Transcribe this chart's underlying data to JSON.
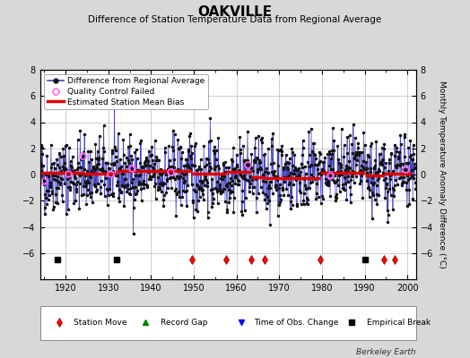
{
  "title": "OAKVILLE",
  "subtitle": "Difference of Station Temperature Data from Regional Average",
  "ylabel": "Monthly Temperature Anomaly Difference (°C)",
  "xlim": [
    1914,
    2002
  ],
  "ylim": [
    -8,
    8
  ],
  "yticks": [
    -6,
    -4,
    -2,
    0,
    2,
    4,
    6,
    8
  ],
  "xticks": [
    1920,
    1930,
    1940,
    1950,
    1960,
    1970,
    1980,
    1990,
    2000
  ],
  "background_color": "#d8d8d8",
  "plot_bg_color": "#ffffff",
  "grid_color": "#bbbbbb",
  "line_color": "#4444bb",
  "dot_color": "#111111",
  "bias_color": "#dd0000",
  "qc_color": "#ff66ff",
  "seed": 42,
  "n_months": 1056,
  "start_year": 1914.0,
  "bias_segments": [
    {
      "x_start": 1914.0,
      "x_end": 1924.0,
      "bias": 0.15
    },
    {
      "x_start": 1924.0,
      "x_end": 1932.0,
      "bias": 0.05
    },
    {
      "x_start": 1932.0,
      "x_end": 1949.5,
      "bias": 0.25
    },
    {
      "x_start": 1949.5,
      "x_end": 1957.5,
      "bias": 0.1
    },
    {
      "x_start": 1957.5,
      "x_end": 1963.5,
      "bias": 0.2
    },
    {
      "x_start": 1963.5,
      "x_end": 1966.5,
      "bias": -0.2
    },
    {
      "x_start": 1966.5,
      "x_end": 1979.5,
      "bias": -0.3
    },
    {
      "x_start": 1979.5,
      "x_end": 1990.0,
      "bias": 0.15
    },
    {
      "x_start": 1990.0,
      "x_end": 1994.5,
      "bias": -0.1
    },
    {
      "x_start": 1994.5,
      "x_end": 2001.0,
      "bias": 0.05
    }
  ],
  "station_moves": [
    1949.5,
    1957.5,
    1963.5,
    1966.5,
    1979.5,
    1994.5,
    1997.0
  ],
  "empirical_breaks": [
    1918.0,
    1932.0,
    1990.0
  ],
  "qc_fail_approx": [
    1914.8,
    1920.5,
    1924.0,
    1930.5,
    1935.5,
    1944.5,
    1962.5,
    1982.0,
    1999.5
  ],
  "time_obs_changes": [],
  "record_gaps": []
}
